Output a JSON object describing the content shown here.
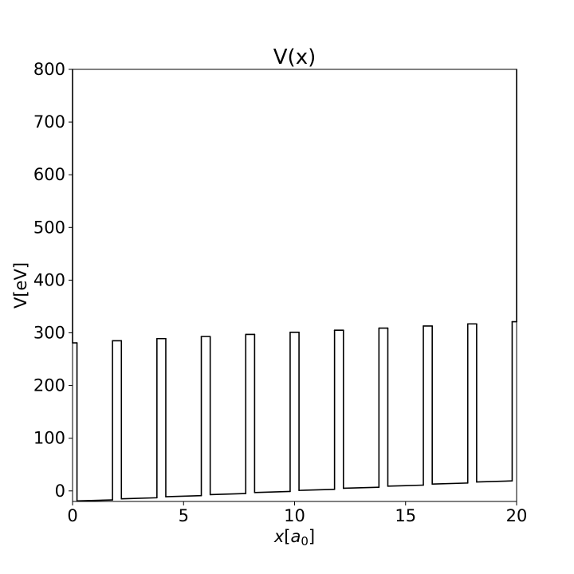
{
  "chart_data": {
    "type": "line",
    "title": "V(x)",
    "xlabel": {
      "main": "x",
      "bracket_open": "[",
      "sub_main": "a",
      "sub_index": "0",
      "bracket_close": "]"
    },
    "ylabel": "V[eV]",
    "xlim": [
      0,
      20
    ],
    "ylim": [
      -20,
      800
    ],
    "xticks": [
      0,
      5,
      10,
      15,
      20
    ],
    "yticks": [
      0,
      100,
      200,
      300,
      400,
      500,
      600,
      700,
      800
    ],
    "xtick_labels": [
      "0",
      "5",
      "10",
      "15",
      "20"
    ],
    "ytick_labels": [
      "0",
      "100",
      "200",
      "300",
      "400",
      "500",
      "600",
      "700",
      "800"
    ],
    "grid": false,
    "line_color": "#000000",
    "series": [
      {
        "x": [
          0,
          0,
          0.2,
          0.2,
          1.8,
          1.8,
          2.2,
          2.2,
          3.8,
          3.8,
          4.2,
          4.2,
          5.8,
          5.8,
          6.2,
          6.2,
          7.8,
          7.8,
          8.2,
          8.2,
          9.8,
          9.8,
          10.2,
          10.2,
          11.8,
          11.8,
          12.2,
          12.2,
          13.8,
          13.8,
          14.2,
          14.2,
          15.8,
          15.8,
          16.2,
          16.2,
          17.8,
          17.8,
          18.2,
          18.2,
          19.8,
          19.8,
          20,
          20
        ],
        "y": [
          800,
          281,
          281,
          -19,
          -17,
          285,
          285,
          -15,
          -13,
          289,
          289,
          -11,
          -9,
          293,
          293,
          -7,
          -5,
          297,
          297,
          -3,
          -1,
          301,
          301,
          1,
          3,
          305,
          305,
          5,
          7,
          309,
          309,
          9,
          11,
          313,
          313,
          13,
          15,
          317,
          317,
          17,
          19,
          321,
          321,
          800
        ]
      }
    ]
  }
}
